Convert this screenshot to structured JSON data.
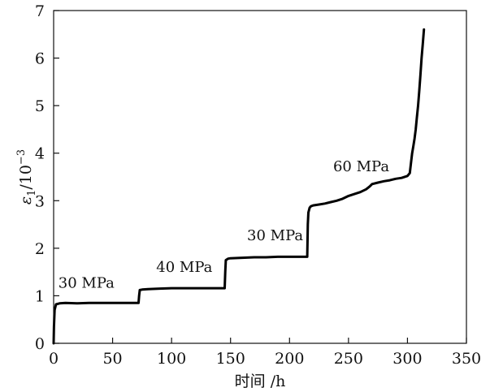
{
  "chart_data": {
    "type": "line",
    "title": "",
    "xlabel": "时间 /h",
    "ylabel": {
      "symbol": "ε",
      "subscript": "1",
      "unit_base": "/10",
      "unit_exp": "−3"
    },
    "xlim": [
      0,
      350
    ],
    "ylim": [
      0,
      7
    ],
    "x_ticks": [
      0,
      50,
      100,
      150,
      200,
      250,
      300,
      350
    ],
    "y_ticks": [
      0,
      1,
      2,
      3,
      4,
      5,
      6,
      7
    ],
    "grid": false,
    "annotations": [
      {
        "text": "30 MPa",
        "x": 4,
        "y": 1.17
      },
      {
        "text": "40 MPa",
        "x": 87,
        "y": 1.5
      },
      {
        "text": "30 MPa",
        "x": 164,
        "y": 2.17
      },
      {
        "text": "60 MPa",
        "x": 237,
        "y": 3.62
      }
    ],
    "series": [
      {
        "name": "",
        "x": [
          0,
          0.3,
          0.8,
          2,
          5,
          10,
          20,
          30,
          40,
          50,
          60,
          70,
          72,
          72.5,
          73,
          75,
          80,
          90,
          100,
          110,
          120,
          130,
          140,
          145,
          145.5,
          146,
          148,
          150,
          160,
          170,
          180,
          190,
          200,
          210,
          215,
          215.5,
          216,
          217,
          218,
          220,
          225,
          230,
          235,
          240,
          245,
          250,
          255,
          260,
          265,
          268,
          270,
          275,
          280,
          285,
          290,
          295,
          300,
          302,
          303,
          304,
          305,
          306,
          307,
          308,
          309,
          310,
          311,
          312,
          313,
          314
        ],
        "values": [
          0,
          0.35,
          0.7,
          0.82,
          0.84,
          0.85,
          0.84,
          0.85,
          0.85,
          0.85,
          0.85,
          0.85,
          0.85,
          1.0,
          1.12,
          1.13,
          1.14,
          1.15,
          1.16,
          1.16,
          1.16,
          1.16,
          1.16,
          1.16,
          1.5,
          1.75,
          1.78,
          1.79,
          1.8,
          1.81,
          1.81,
          1.82,
          1.82,
          1.82,
          1.82,
          2.5,
          2.75,
          2.85,
          2.88,
          2.9,
          2.92,
          2.94,
          2.97,
          3.0,
          3.04,
          3.1,
          3.14,
          3.18,
          3.24,
          3.3,
          3.35,
          3.38,
          3.41,
          3.43,
          3.46,
          3.48,
          3.52,
          3.58,
          3.8,
          4.0,
          4.15,
          4.3,
          4.5,
          4.75,
          5.0,
          5.3,
          5.65,
          6.0,
          6.3,
          6.6
        ]
      }
    ]
  }
}
